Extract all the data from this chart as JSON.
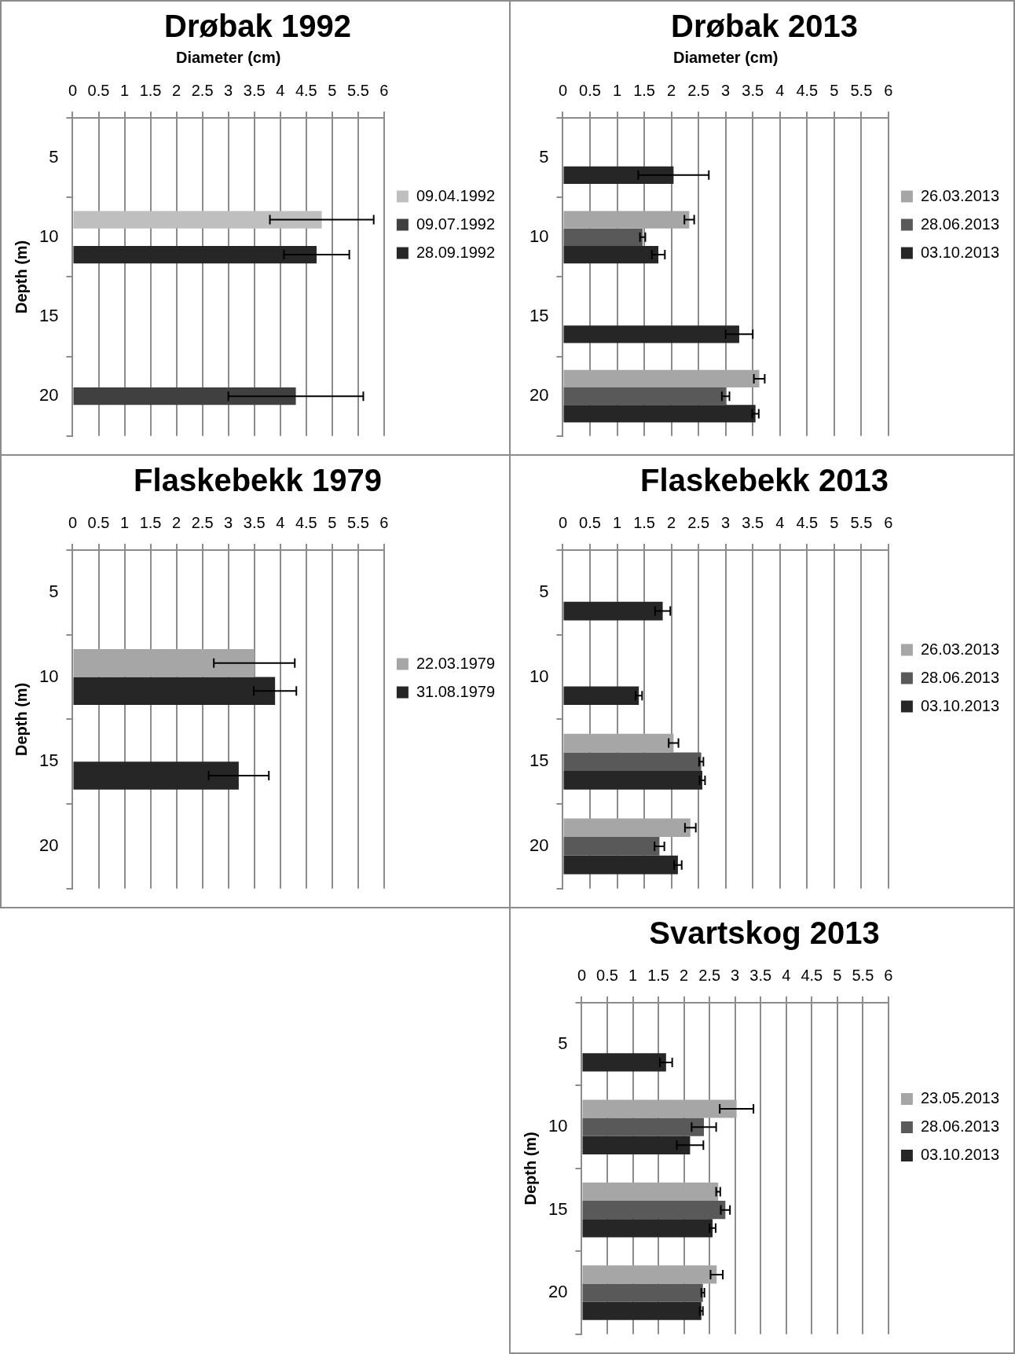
{
  "chart_data": [
    {
      "type": "bar",
      "orientation": "horizontal",
      "title": "Drøbak 1992",
      "xlabel": "Diameter (cm)",
      "ylabel": "Depth (m)",
      "categories": [
        "5",
        "10",
        "15",
        "20"
      ],
      "xlim": [
        0,
        6
      ],
      "xticks": [
        0,
        0.5,
        1,
        1.5,
        2,
        2.5,
        3,
        3.5,
        4,
        4.5,
        5,
        5.5,
        6
      ],
      "grid": "x",
      "legend": "right",
      "series": [
        {
          "name": "09.04.1992",
          "color": "#bfbfbf",
          "values": [
            null,
            4.8,
            null,
            null
          ],
          "errors": [
            null,
            1.0,
            null,
            null
          ]
        },
        {
          "name": "09.07.1992",
          "color": "#404040",
          "values": [
            null,
            null,
            null,
            4.3
          ],
          "errors": [
            null,
            null,
            null,
            1.3
          ]
        },
        {
          "name": "28.09.1992",
          "color": "#262626",
          "values": [
            null,
            4.7,
            null,
            null
          ],
          "errors": [
            null,
            0.63,
            null,
            null
          ]
        }
      ]
    },
    {
      "type": "bar",
      "orientation": "horizontal",
      "title": "Drøbak 2013",
      "xlabel": "Diameter (cm)",
      "categories": [
        "5",
        "10",
        "15",
        "20"
      ],
      "xlim": [
        0,
        6
      ],
      "xticks": [
        0,
        0.5,
        1,
        1.5,
        2,
        2.5,
        3,
        3.5,
        4,
        4.5,
        5,
        5.5,
        6
      ],
      "grid": "x",
      "legend": "right",
      "series": [
        {
          "name": "26.03.2013",
          "color": "#a6a6a6",
          "values": [
            null,
            2.33,
            null,
            3.62
          ],
          "errors": [
            null,
            0.09,
            null,
            0.1
          ]
        },
        {
          "name": "28.06.2013",
          "color": "#595959",
          "values": [
            null,
            1.47,
            null,
            3.0
          ],
          "errors": [
            null,
            0.05,
            null,
            0.07
          ]
        },
        {
          "name": "03.10.2013",
          "color": "#262626",
          "values": [
            2.04,
            1.76,
            3.25,
            3.55
          ],
          "errors": [
            0.65,
            0.12,
            0.25,
            0.06
          ]
        }
      ]
    },
    {
      "type": "bar",
      "orientation": "horizontal",
      "title": "Flaskebekk 1979",
      "ylabel": "Depth (m)",
      "categories": [
        "5",
        "10",
        "15",
        "20"
      ],
      "xlim": [
        0,
        6
      ],
      "xticks": [
        0,
        0.5,
        1,
        1.5,
        2,
        2.5,
        3,
        3.5,
        4,
        4.5,
        5,
        5.5,
        6
      ],
      "grid": "x",
      "legend": "right",
      "series": [
        {
          "name": "22.03.1979",
          "color": "#a6a6a6",
          "values": [
            null,
            3.5,
            null,
            null
          ],
          "errors": [
            null,
            0.78,
            null,
            null
          ]
        },
        {
          "name": "31.08.1979",
          "color": "#262626",
          "values": [
            null,
            3.9,
            3.2,
            null
          ],
          "errors": [
            null,
            0.41,
            0.58,
            null
          ]
        }
      ]
    },
    {
      "type": "bar",
      "orientation": "horizontal",
      "title": "Flaskebekk 2013",
      "categories": [
        "5",
        "10",
        "15",
        "20"
      ],
      "xlim": [
        0,
        6
      ],
      "xticks": [
        0,
        0.5,
        1,
        1.5,
        2,
        2.5,
        3,
        3.5,
        4,
        4.5,
        5,
        5.5,
        6
      ],
      "grid": "x",
      "legend": "right",
      "series": [
        {
          "name": "26.03.2013",
          "color": "#a6a6a6",
          "values": [
            null,
            null,
            2.04,
            2.35
          ],
          "errors": [
            null,
            null,
            0.09,
            0.1
          ]
        },
        {
          "name": "28.06.2013",
          "color": "#595959",
          "values": [
            null,
            null,
            2.55,
            1.78
          ],
          "errors": [
            null,
            null,
            0.04,
            0.09
          ]
        },
        {
          "name": "03.10.2013",
          "color": "#262626",
          "values": [
            1.84,
            1.4,
            2.57,
            2.12
          ],
          "errors": [
            0.14,
            0.06,
            0.05,
            0.07
          ]
        }
      ]
    },
    {
      "type": "bar",
      "orientation": "horizontal",
      "title": "Svartskog 2013",
      "ylabel": "Depth (m)",
      "categories": [
        "5",
        "10",
        "15",
        "20"
      ],
      "xlim": [
        0,
        6
      ],
      "xticks": [
        0,
        0.5,
        1,
        1.5,
        2,
        2.5,
        3,
        3.5,
        4,
        4.5,
        5,
        5.5,
        6
      ],
      "grid": "x",
      "legend": "right",
      "series": [
        {
          "name": "23.05.2013",
          "color": "#a6a6a6",
          "values": [
            null,
            3.03,
            2.67,
            2.64
          ],
          "errors": [
            null,
            0.33,
            0.04,
            0.12
          ]
        },
        {
          "name": "28.06.2013",
          "color": "#595959",
          "values": [
            null,
            2.39,
            2.81,
            2.37
          ],
          "errors": [
            null,
            0.24,
            0.09,
            0.03
          ]
        },
        {
          "name": "03.10.2013",
          "color": "#262626",
          "values": [
            1.65,
            2.12,
            2.56,
            2.34
          ],
          "errors": [
            0.12,
            0.26,
            0.06,
            0.03
          ]
        }
      ]
    }
  ]
}
